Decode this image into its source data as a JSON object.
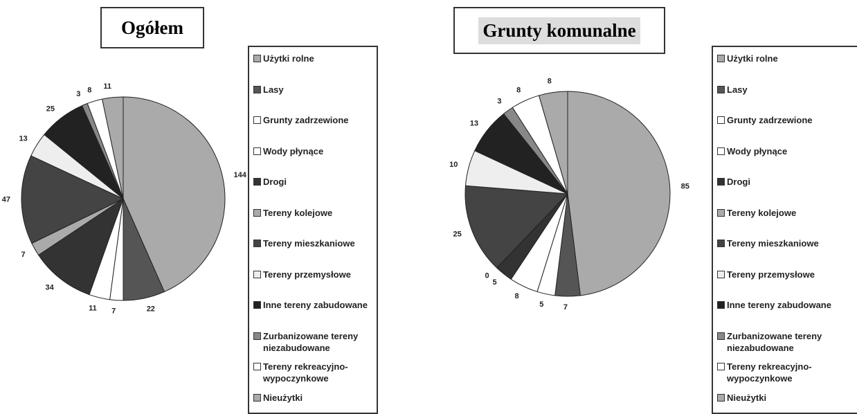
{
  "chart_data": [
    {
      "type": "pie",
      "title": "Ogółem",
      "categories": [
        "Użytki rolne",
        "Lasy",
        "Grunty zadrzewione",
        "Wody płynące",
        "Drogi",
        "Tereny kolejowe",
        "Tereny mieszkaniowe",
        "Tereny przemysłowe",
        "Inne tereny zabudowane",
        "Zurbanizowane tereny niezabudowane",
        "Tereny rekreacyjno-wypoczynkowe",
        "Nieużytki"
      ],
      "values": [
        144,
        22,
        7,
        11,
        34,
        7,
        47,
        13,
        25,
        3,
        8,
        11
      ],
      "colors": [
        "#aaaaaa",
        "#555555",
        "#ffffff",
        "#ffffff",
        "#333333",
        "#aaaaaa",
        "#444444",
        "#eeeeee",
        "#222222",
        "#888888",
        "#ffffff",
        "#aaaaaa"
      ]
    },
    {
      "type": "pie",
      "title": "Grunty komunalne",
      "categories": [
        "Użytki rolne",
        "Lasy",
        "Grunty zadrzewione",
        "Wody płynące",
        "Drogi",
        "Tereny kolejowe",
        "Tereny mieszkaniowe",
        "Tereny przemysłowe",
        "Inne tereny zabudowane",
        "Zurbanizowane tereny niezabudowane",
        "Tereny rekreacyjno-wypoczynkowe",
        "Nieużytki"
      ],
      "values": [
        85,
        7,
        5,
        8,
        5,
        0,
        25,
        10,
        13,
        3,
        8,
        8
      ],
      "colors": [
        "#aaaaaa",
        "#555555",
        "#ffffff",
        "#ffffff",
        "#333333",
        "#aaaaaa",
        "#444444",
        "#eeeeee",
        "#222222",
        "#888888",
        "#ffffff",
        "#aaaaaa"
      ]
    }
  ]
}
